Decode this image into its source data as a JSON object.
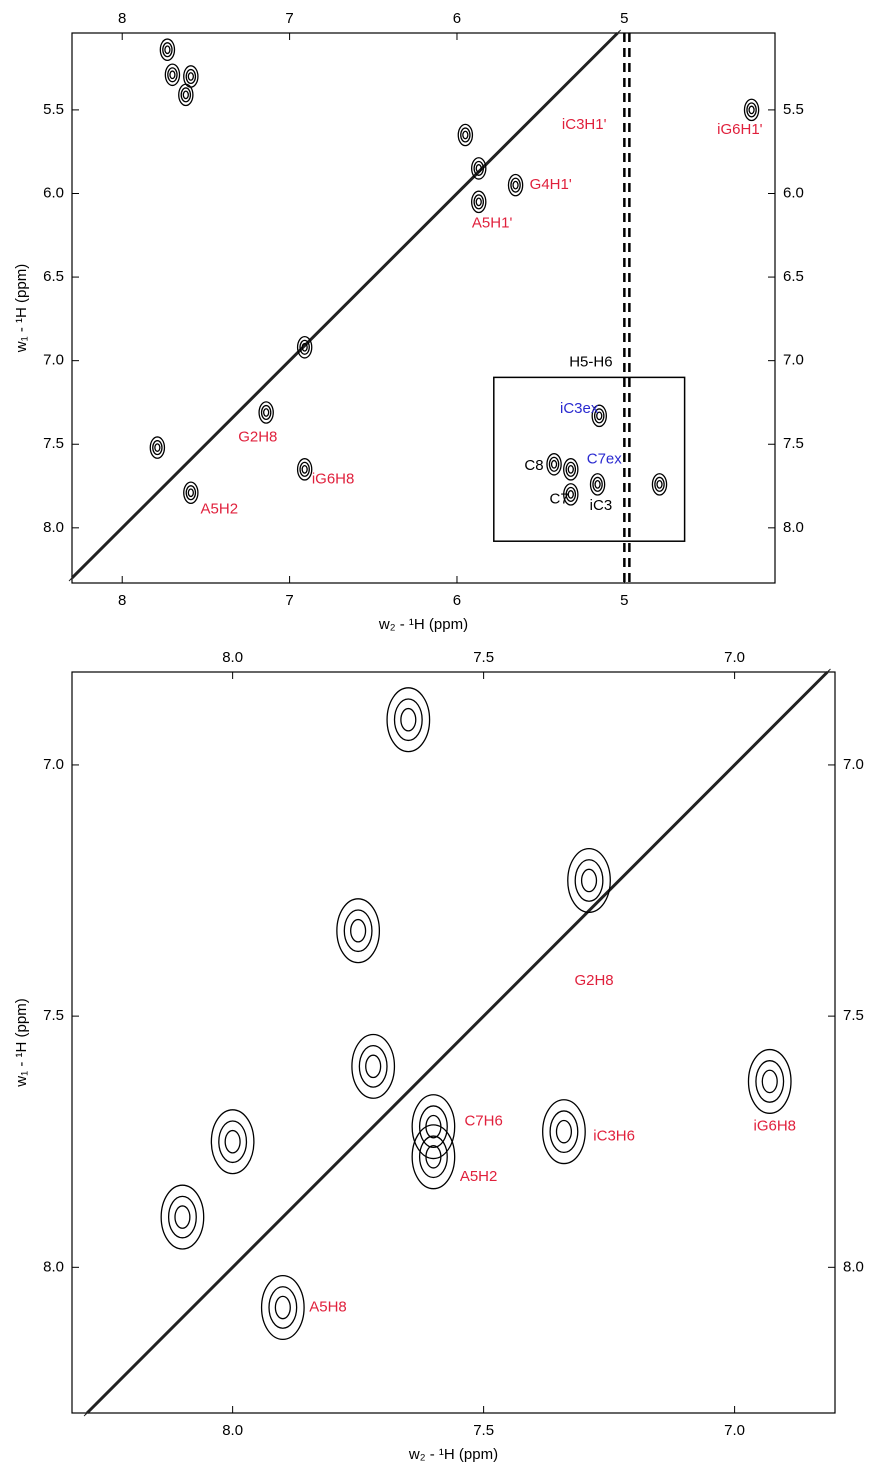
{
  "chart_data": [
    {
      "type": "contour",
      "xlabel": "w₂ - ¹H  (ppm)",
      "ylabel": "w₁ - ¹H  (ppm)",
      "xlim": [
        8.3,
        4.1
      ],
      "ylim": [
        5.04,
        8.33
      ],
      "xticks": [
        8,
        7,
        6,
        5
      ],
      "yticks": [
        5.5,
        {
          "value": 6,
          "label": "6.0"
        },
        6.5,
        {
          "value": 7,
          "label": "7.0"
        },
        7.5,
        {
          "value": 8,
          "label": "8.0"
        }
      ],
      "ridges": [
        5.0,
        4.97
      ],
      "peaks": [
        {
          "x": 7.73,
          "y": 5.14
        },
        {
          "x": 7.7,
          "y": 5.29
        },
        {
          "x": 7.62,
          "y": 5.41
        },
        {
          "x": 7.59,
          "y": 5.3
        },
        {
          "x": 6.91,
          "y": 6.92
        },
        {
          "x": 6.91,
          "y": 7.65
        },
        {
          "x": 7.14,
          "y": 7.31
        },
        {
          "x": 7.59,
          "y": 7.79
        },
        {
          "x": 5.95,
          "y": 5.65
        },
        {
          "x": 5.65,
          "y": 5.95
        },
        {
          "x": 5.87,
          "y": 6.05
        },
        {
          "x": 5.87,
          "y": 5.85
        },
        {
          "x": 4.24,
          "y": 5.5
        },
        {
          "x": 5.42,
          "y": 7.62
        },
        {
          "x": 5.32,
          "y": 7.65
        },
        {
          "x": 5.32,
          "y": 7.8
        },
        {
          "x": 5.15,
          "y": 7.33
        },
        {
          "x": 5.16,
          "y": 7.74
        },
        {
          "x": 4.79,
          "y": 7.74
        },
        {
          "x": 7.79,
          "y": 7.52
        }
      ],
      "region": {
        "label": "H5-H6",
        "x": [
          5.78,
          4.64
        ],
        "y": [
          7.1,
          8.08
        ]
      },
      "annotations": [
        {
          "text": "iC3H1'",
          "x": 5.24,
          "y": 5.59,
          "color": "#e0203c"
        },
        {
          "text": "iG6H1'",
          "x": 4.31,
          "y": 5.62,
          "color": "#e0203c"
        },
        {
          "text": "G4H1'",
          "x": 5.44,
          "y": 5.95,
          "color": "#e0203c"
        },
        {
          "text": "A5H1'",
          "x": 5.79,
          "y": 6.18,
          "color": "#e0203c"
        },
        {
          "text": "H5-H6",
          "x": 5.2,
          "y": 7.01,
          "color": "#000000"
        },
        {
          "text": "iC3ex",
          "x": 5.27,
          "y": 7.29,
          "color": "#2a2ad0"
        },
        {
          "text": "C8",
          "x": 5.54,
          "y": 7.63,
          "color": "#000000"
        },
        {
          "text": "C7ex",
          "x": 5.12,
          "y": 7.59,
          "color": "#2a2ad0"
        },
        {
          "text": "C7",
          "x": 5.39,
          "y": 7.83,
          "color": "#000000"
        },
        {
          "text": "iC3",
          "x": 5.14,
          "y": 7.87,
          "color": "#000000"
        },
        {
          "text": "G2H8",
          "x": 7.19,
          "y": 7.46,
          "color": "#e0203c"
        },
        {
          "text": "iG6H8",
          "x": 6.74,
          "y": 7.71,
          "color": "#e0203c"
        },
        {
          "text": "A5H2",
          "x": 7.42,
          "y": 7.89,
          "color": "#e0203c"
        }
      ]
    },
    {
      "type": "contour",
      "xlabel": "w₂ - ¹H  (ppm)",
      "ylabel": "w₁ - ¹H  (ppm)",
      "xlim": [
        8.32,
        6.8
      ],
      "ylim": [
        6.815,
        8.29
      ],
      "xticks": [
        {
          "value": 8,
          "label": "8.0"
        },
        7.5,
        {
          "value": 7,
          "label": "7.0"
        }
      ],
      "yticks": [
        {
          "value": 7,
          "label": "7.0"
        },
        7.5,
        {
          "value": 8,
          "label": "8.0"
        }
      ],
      "peaks": [
        {
          "x": 7.65,
          "y": 6.91
        },
        {
          "x": 7.75,
          "y": 7.33
        },
        {
          "x": 7.34,
          "y": 7.73
        },
        {
          "x": 6.93,
          "y": 7.63
        },
        {
          "x": 7.6,
          "y": 7.78
        },
        {
          "x": 7.6,
          "y": 7.72
        },
        {
          "x": 7.72,
          "y": 7.6
        },
        {
          "x": 7.9,
          "y": 8.08
        },
        {
          "x": 8.1,
          "y": 7.9
        },
        {
          "x": 8.0,
          "y": 7.75
        },
        {
          "x": 7.29,
          "y": 7.23
        }
      ],
      "annotations": [
        {
          "text": "G2H8",
          "x": 7.28,
          "y": 7.43,
          "color": "#e0203c"
        },
        {
          "text": "C7H6",
          "x": 7.5,
          "y": 7.71,
          "color": "#e0203c"
        },
        {
          "text": "iC3H6",
          "x": 7.24,
          "y": 7.74,
          "color": "#e0203c"
        },
        {
          "text": "iG6H8",
          "x": 6.92,
          "y": 7.72,
          "color": "#e0203c"
        },
        {
          "text": "A5H2",
          "x": 7.51,
          "y": 7.82,
          "color": "#e0203c"
        },
        {
          "text": "A5H8",
          "x": 7.81,
          "y": 8.08,
          "color": "#e0203c"
        }
      ]
    }
  ]
}
